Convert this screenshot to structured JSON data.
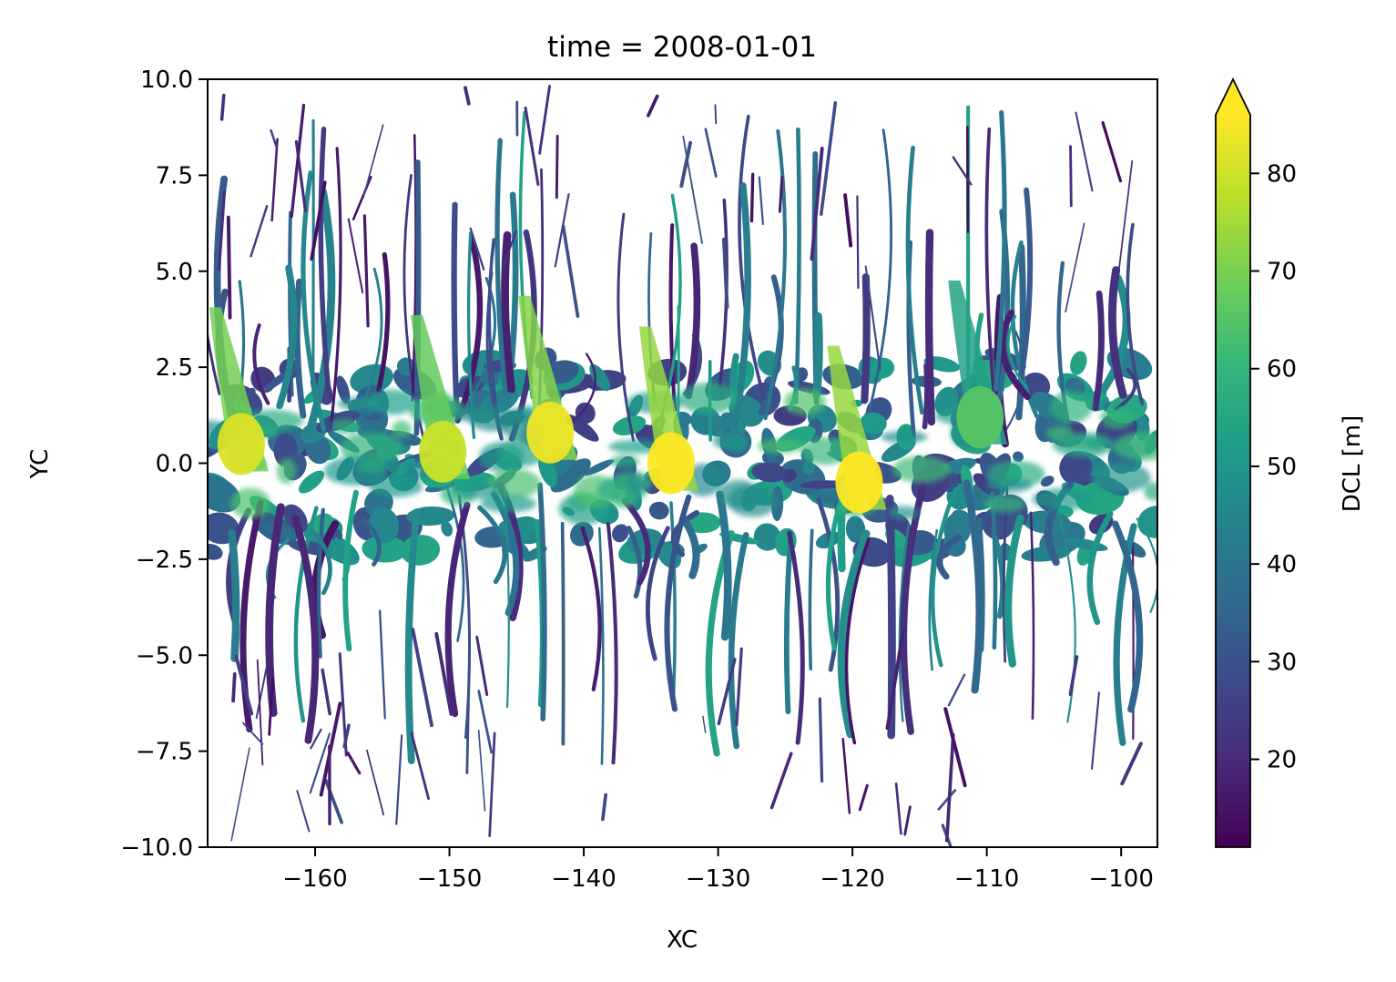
{
  "chart_data": {
    "type": "heatmap",
    "title": "time = 2008-01-01",
    "xlabel": "XC",
    "ylabel": "YC",
    "xlim": [
      -168,
      -97.3
    ],
    "ylim": [
      -10.0,
      10.0
    ],
    "x_ticks": [
      -160,
      -150,
      -140,
      -130,
      -120,
      -110,
      -100
    ],
    "x_tick_labels": [
      "−160",
      "−150",
      "−140",
      "−130",
      "−120",
      "−110",
      "−100"
    ],
    "y_ticks": [
      -10.0,
      -7.5,
      -5.0,
      -2.5,
      0.0,
      2.5,
      5.0,
      7.5,
      10.0
    ],
    "y_tick_labels": [
      "−10.0",
      "−7.5",
      "−5.0",
      "−2.5",
      "0.0",
      "2.5",
      "5.0",
      "7.5",
      "10.0"
    ],
    "colorbar": {
      "label": "DCL [m]",
      "colormap": "viridis",
      "vmin": 11,
      "vmax": 86,
      "extend": "max",
      "ticks": [
        20,
        30,
        40,
        50,
        60,
        70,
        80
      ],
      "tick_labels": [
        "20",
        "30",
        "40",
        "50",
        "60",
        "70",
        "80"
      ]
    },
    "grid": false,
    "peaks": [
      {
        "x": -165.5,
        "y": 0.5,
        "value": 82
      },
      {
        "x": -150.5,
        "y": 0.3,
        "value": 80
      },
      {
        "x": -142.5,
        "y": 0.8,
        "value": 84
      },
      {
        "x": -133.5,
        "y": 0.0,
        "value": 86
      },
      {
        "x": -119.5,
        "y": -0.5,
        "value": 86
      },
      {
        "x": -110.5,
        "y": 1.2,
        "value": 66
      }
    ],
    "colors": {
      "viridis": [
        "#440154",
        "#482878",
        "#3e4989",
        "#31688e",
        "#26828e",
        "#1f9e89",
        "#35b779",
        "#6ece58",
        "#b5de2b",
        "#fde725"
      ]
    }
  }
}
